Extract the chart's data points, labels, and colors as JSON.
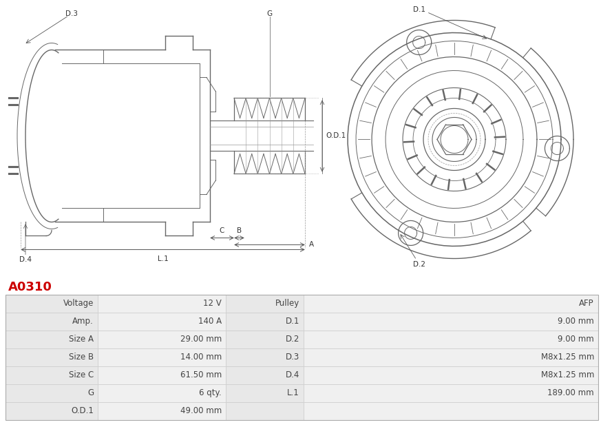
{
  "title": "A0310",
  "title_color": "#cc0000",
  "background_color": "#ffffff",
  "table_rows": [
    [
      "Voltage",
      "12 V",
      "Pulley",
      "AFP"
    ],
    [
      "Amp.",
      "140 A",
      "D.1",
      "9.00 mm"
    ],
    [
      "Size A",
      "29.00 mm",
      "D.2",
      "9.00 mm"
    ],
    [
      "Size B",
      "14.00 mm",
      "D.3",
      "M8x1.25 mm"
    ],
    [
      "Size C",
      "61.50 mm",
      "D.4",
      "M8x1.25 mm"
    ],
    [
      "G",
      "6 qty.",
      "L.1",
      "189.00 mm"
    ],
    [
      "O.D.1",
      "49.00 mm",
      "",
      ""
    ]
  ],
  "row_bg_odd": "#e8e8e8",
  "row_bg_even": "#f0f0f0",
  "text_color": "#444444",
  "border_color": "#cccccc",
  "lc": "#666666",
  "lc2": "#999999"
}
